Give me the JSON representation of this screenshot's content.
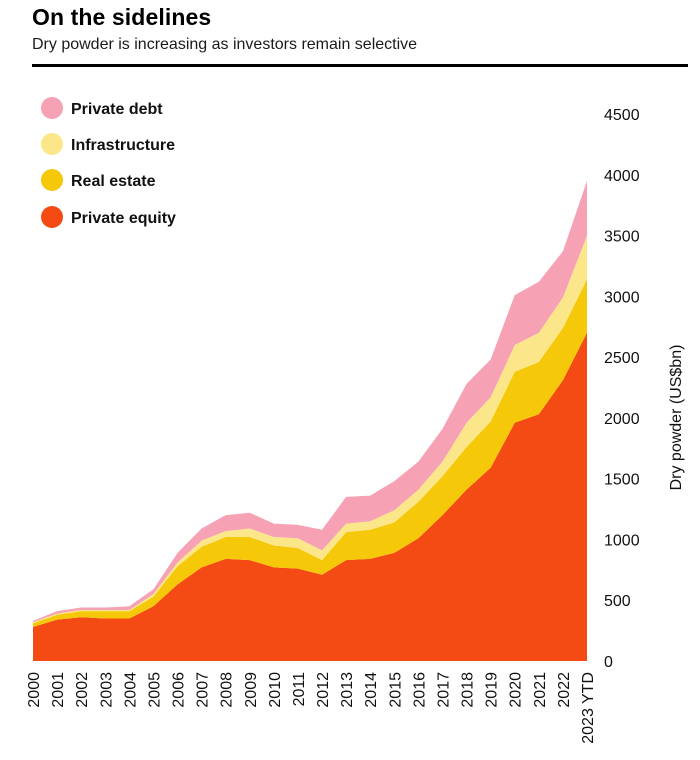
{
  "header": {
    "title": "On the sidelines",
    "subtitle": "Dry powder is increasing as investors remain selective"
  },
  "chart_data": {
    "type": "area",
    "stacked": true,
    "title": "On the sidelines",
    "subtitle": "Dry powder is increasing as investors remain selective",
    "xlabel": "",
    "ylabel": "Dry powder (US$bn)",
    "y_axis_position": "right",
    "ylim": [
      0,
      4500
    ],
    "yticks": [
      0,
      500,
      1000,
      1500,
      2000,
      2500,
      3000,
      3500,
      4000,
      4500
    ],
    "grid": false,
    "legend_position": "top-left",
    "x": [
      "2000",
      "2001",
      "2002",
      "2003",
      "2004",
      "2005",
      "2006",
      "2007",
      "2008",
      "2009",
      "2010",
      "2011",
      "2012",
      "2013",
      "2014",
      "2015",
      "2016",
      "2017",
      "2018",
      "2019",
      "2020",
      "2021",
      "2022",
      "2023 YTD"
    ],
    "series": [
      {
        "name": "Private equity",
        "color": "#f44a14",
        "values": [
          280,
          340,
          360,
          350,
          350,
          450,
          630,
          770,
          840,
          830,
          770,
          760,
          710,
          830,
          840,
          890,
          1010,
          1200,
          1410,
          1590,
          1960,
          2030,
          2310,
          2700
        ]
      },
      {
        "name": "Real estate",
        "color": "#f6c80a",
        "values": [
          30,
          40,
          50,
          60,
          60,
          80,
          150,
          170,
          180,
          190,
          180,
          170,
          120,
          230,
          240,
          250,
          300,
          320,
          350,
          380,
          420,
          430,
          430,
          440
        ]
      },
      {
        "name": "Infrastructure",
        "color": "#fbe68a",
        "values": [
          10,
          10,
          10,
          10,
          10,
          20,
          30,
          50,
          50,
          70,
          70,
          80,
          80,
          70,
          70,
          100,
          100,
          120,
          200,
          200,
          220,
          240,
          250,
          360
        ]
      },
      {
        "name": "Private debt",
        "color": "#f6a1b4",
        "values": [
          10,
          20,
          20,
          20,
          30,
          40,
          80,
          100,
          130,
          130,
          110,
          110,
          170,
          220,
          210,
          240,
          230,
          270,
          320,
          310,
          410,
          420,
          380,
          450
        ]
      }
    ],
    "legend": [
      {
        "name": "Private debt",
        "color": "#f6a1b4"
      },
      {
        "name": "Infrastructure",
        "color": "#fbe68a"
      },
      {
        "name": "Real estate",
        "color": "#f6c80a"
      },
      {
        "name": "Private equity",
        "color": "#f44a14"
      }
    ]
  }
}
